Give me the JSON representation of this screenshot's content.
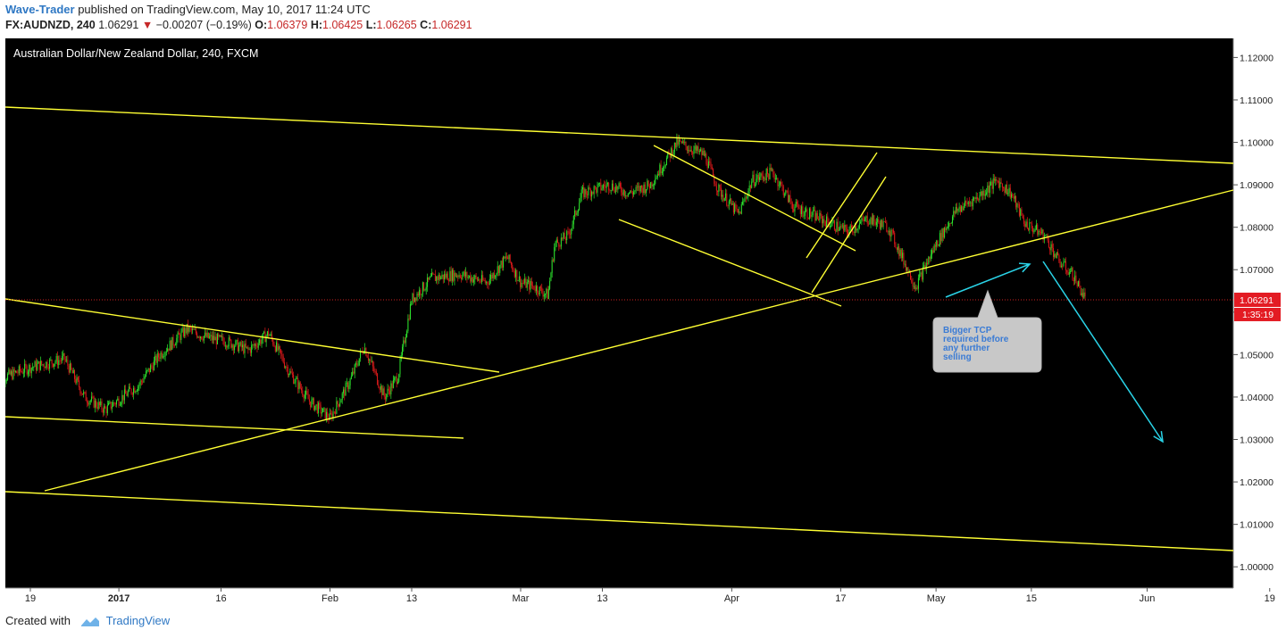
{
  "header": {
    "author": "Wave-Trader",
    "published_text": "published on TradingView.com, May 10, 2017 11:24 UTC",
    "symbol": "FX:AUDNZD, 240",
    "last_price": "1.06291",
    "change_arrow": "▼",
    "change": "−0.00207 (−0.19%)",
    "o_label": "O:",
    "o_value": "1.06379",
    "h_label": "H:",
    "h_value": "1.06425",
    "l_label": "L:",
    "l_value": "1.06265",
    "c_label": "C:",
    "c_value": "1.06291"
  },
  "footer": {
    "created_with": "Created with",
    "brand": "TradingView"
  },
  "colors": {
    "background": "#000000",
    "candle_up": "#2ee62e",
    "candle_down": "#e01b1b",
    "trendline": "#ffff33",
    "projection_arrow": "#2ad4e8",
    "price_line": "#cc1f1f",
    "price_badge": "#e31b23",
    "axis_background": "#ffffff",
    "callout_bg": "#c8c8c8",
    "callout_text": "#3a7bd5"
  },
  "chart_data": {
    "type": "candlestick",
    "title": "Australian Dollar/New Zealand Dollar, 240, FXCM",
    "ylim": [
      0.995,
      1.1245
    ],
    "y_ticks": [
      "1.12000",
      "1.11000",
      "1.10000",
      "1.09000",
      "1.08000",
      "1.07000",
      "1.06000",
      "1.05000",
      "1.04000",
      "1.03000",
      "1.02000",
      "1.01000",
      "1.00000"
    ],
    "x_ticks": [
      "19",
      "2017",
      "16",
      "Feb",
      "13",
      "Mar",
      "13",
      "Apr",
      "17",
      "May",
      "15",
      "Jun",
      "19"
    ],
    "current_price_label": "1.06291",
    "countdown_label": "1:35:19",
    "price_path": [
      {
        "date": "2016-12-14",
        "price": 1.044
      },
      {
        "date": "2016-12-19",
        "price": 1.047
      },
      {
        "date": "2016-12-24",
        "price": 1.049
      },
      {
        "date": "2016-12-27",
        "price": 1.04
      },
      {
        "date": "2016-12-30",
        "price": 1.037
      },
      {
        "date": "2017-01-04",
        "price": 1.043
      },
      {
        "date": "2017-01-07",
        "price": 1.05
      },
      {
        "date": "2017-01-11",
        "price": 1.056
      },
      {
        "date": "2017-01-14",
        "price": 1.054
      },
      {
        "date": "2017-01-17",
        "price": 1.053
      },
      {
        "date": "2017-01-20",
        "price": 1.051
      },
      {
        "date": "2017-01-23",
        "price": 1.055
      },
      {
        "date": "2017-01-26",
        "price": 1.046
      },
      {
        "date": "2017-01-29",
        "price": 1.039
      },
      {
        "date": "2017-02-01",
        "price": 1.035
      },
      {
        "date": "2017-02-04",
        "price": 1.044
      },
      {
        "date": "2017-02-06",
        "price": 1.052
      },
      {
        "date": "2017-02-09",
        "price": 1.04
      },
      {
        "date": "2017-02-11",
        "price": 1.045
      },
      {
        "date": "2017-02-13",
        "price": 1.063
      },
      {
        "date": "2017-02-16",
        "price": 1.068
      },
      {
        "date": "2017-02-20",
        "price": 1.069
      },
      {
        "date": "2017-02-24",
        "price": 1.067
      },
      {
        "date": "2017-02-27",
        "price": 1.073
      },
      {
        "date": "2017-03-01",
        "price": 1.067
      },
      {
        "date": "2017-03-03",
        "price": 1.066
      },
      {
        "date": "2017-03-05",
        "price": 1.064
      },
      {
        "date": "2017-03-06",
        "price": 1.076
      },
      {
        "date": "2017-03-08",
        "price": 1.078
      },
      {
        "date": "2017-03-10",
        "price": 1.088
      },
      {
        "date": "2017-03-14",
        "price": 1.09
      },
      {
        "date": "2017-03-17",
        "price": 1.088
      },
      {
        "date": "2017-03-20",
        "price": 1.09
      },
      {
        "date": "2017-03-22",
        "price": 1.095
      },
      {
        "date": "2017-03-24",
        "price": 1.1
      },
      {
        "date": "2017-03-28",
        "price": 1.097
      },
      {
        "date": "2017-03-30",
        "price": 1.089
      },
      {
        "date": "2017-04-02",
        "price": 1.083
      },
      {
        "date": "2017-04-04",
        "price": 1.091
      },
      {
        "date": "2017-04-07",
        "price": 1.093
      },
      {
        "date": "2017-04-10",
        "price": 1.085
      },
      {
        "date": "2017-04-14",
        "price": 1.082
      },
      {
        "date": "2017-04-18",
        "price": 1.079
      },
      {
        "date": "2017-04-21",
        "price": 1.082
      },
      {
        "date": "2017-04-24",
        "price": 1.08
      },
      {
        "date": "2017-04-26",
        "price": 1.073
      },
      {
        "date": "2017-04-28",
        "price": 1.066
      },
      {
        "date": "2017-05-01",
        "price": 1.076
      },
      {
        "date": "2017-05-04",
        "price": 1.084
      },
      {
        "date": "2017-05-07",
        "price": 1.087
      },
      {
        "date": "2017-05-10",
        "price": 1.091
      },
      {
        "date": "2017-05-12",
        "price": 1.088
      },
      {
        "date": "2017-05-14",
        "price": 1.081
      },
      {
        "date": "2017-05-17",
        "price": 1.078
      },
      {
        "date": "2017-05-19",
        "price": 1.072
      },
      {
        "date": "2017-05-21",
        "price": 1.069
      },
      {
        "date": "2017-05-23",
        "price": 1.0629
      }
    ],
    "annotation_text": [
      "Bigger TCP",
      "required before",
      "any further",
      "selling"
    ]
  }
}
